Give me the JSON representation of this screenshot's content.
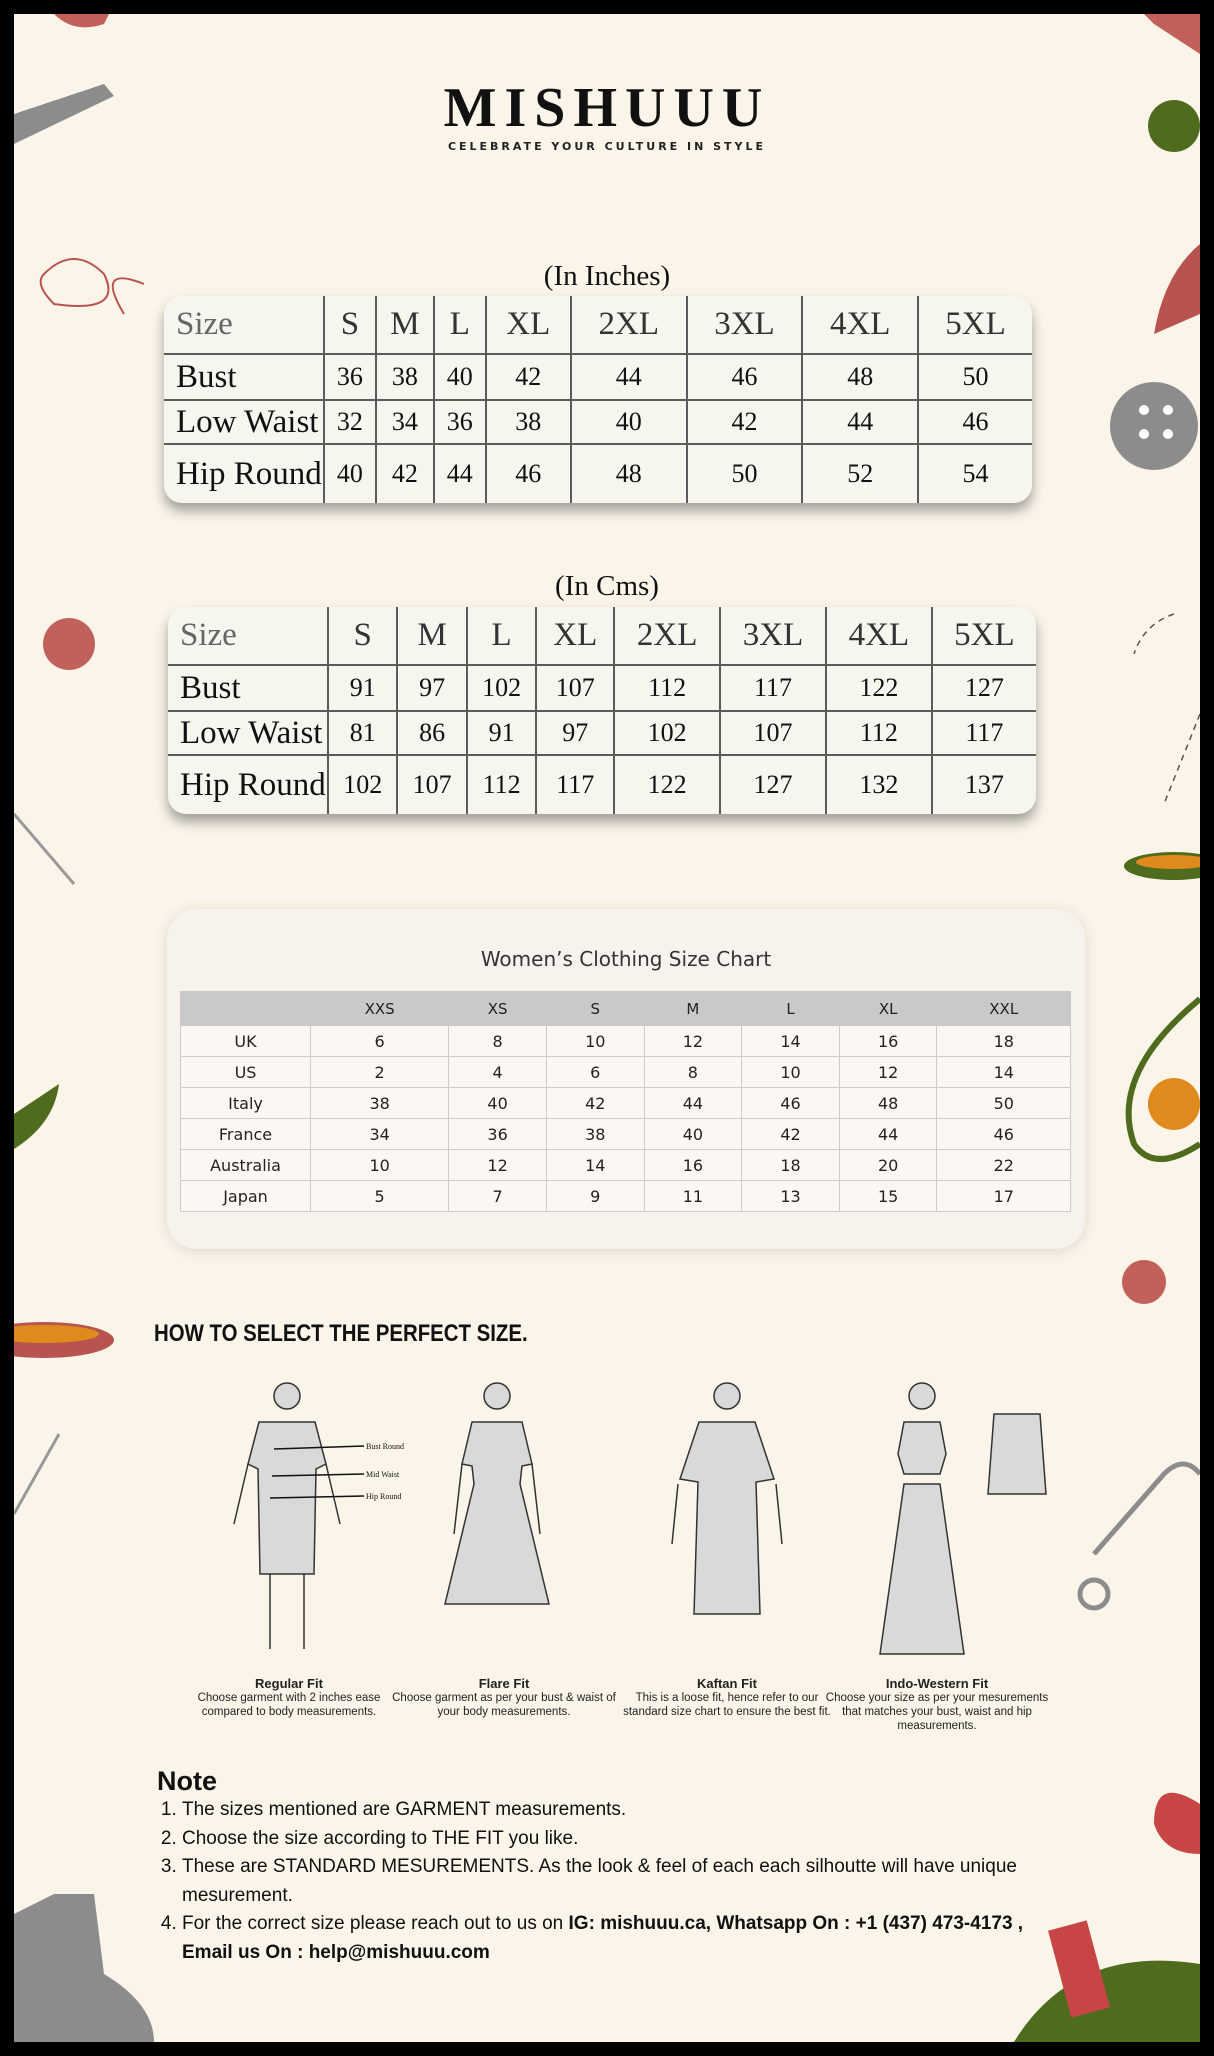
{
  "brand": {
    "name": "MISHUUU",
    "tagline": "CELEBRATE YOUR CULTURE IN STYLE"
  },
  "inches": {
    "title": "(In Inches)",
    "header": [
      "Size",
      "S",
      "M",
      "L",
      "XL",
      "2XL",
      "3XL",
      "4XL",
      "5XL"
    ],
    "rows": [
      [
        "Bust",
        36,
        38,
        40,
        42,
        44,
        46,
        48,
        50
      ],
      [
        "Low Waist",
        32,
        34,
        36,
        38,
        40,
        42,
        44,
        46
      ],
      [
        "Hip Round",
        40,
        42,
        44,
        46,
        48,
        50,
        52,
        54
      ]
    ]
  },
  "cms": {
    "title": "(In Cms)",
    "header": [
      "Size",
      "S",
      "M",
      "L",
      "XL",
      "2XL",
      "3XL",
      "4XL",
      "5XL"
    ],
    "rows": [
      [
        "Bust",
        91,
        97,
        102,
        107,
        112,
        117,
        122,
        127
      ],
      [
        "Low Waist",
        81,
        86,
        91,
        97,
        102,
        107,
        112,
        117
      ],
      [
        "Hip Round",
        102,
        107,
        112,
        117,
        122,
        127,
        132,
        137
      ]
    ]
  },
  "womens": {
    "title": "Women’s Clothing Size Chart",
    "columns": [
      "XXS",
      "XS",
      "S",
      "M",
      "L",
      "XL",
      "XXL"
    ],
    "rows": [
      {
        "label": "UK",
        "values": [
          6,
          8,
          10,
          12,
          14,
          16,
          18
        ]
      },
      {
        "label": "US",
        "values": [
          2,
          4,
          6,
          8,
          10,
          12,
          14
        ]
      },
      {
        "label": "Italy",
        "values": [
          38,
          40,
          42,
          44,
          46,
          48,
          50
        ]
      },
      {
        "label": "France",
        "values": [
          34,
          36,
          38,
          40,
          42,
          44,
          46
        ]
      },
      {
        "label": "Australia",
        "values": [
          10,
          12,
          14,
          16,
          18,
          20,
          22
        ]
      },
      {
        "label": "Japan",
        "values": [
          5,
          7,
          9,
          11,
          13,
          15,
          17
        ]
      }
    ]
  },
  "howto": {
    "title": "HOW TO SELECT THE PERFECT SIZE.",
    "measure_labels": [
      "Bust Round",
      "Mid Waist",
      "Hip Round"
    ],
    "fits": [
      {
        "name": "Regular Fit",
        "description": "Choose garment with 2 inches ease compared to body measurements."
      },
      {
        "name": "Flare Fit",
        "description": "Choose garment as per your bust & waist of your body measurements."
      },
      {
        "name": "Kaftan Fit",
        "description": "This is a loose fit, hence refer to our standard size chart to ensure the best fit."
      },
      {
        "name": "Indo-Western Fit",
        "description": "Choose your size as per your mesurements that matches your bust, waist and hip measurements."
      }
    ]
  },
  "note": {
    "title": "Note",
    "items": [
      "The sizes mentioned are GARMENT measurements.",
      "Choose the size according to THE FIT you like.",
      "These are STANDARD MESUREMENTS. As the look & feel of each each silhoutte will have unique mesurement.",
      {
        "text": "For the correct size please reach out to us on ",
        "bold": "IG: mishuuu.ca, Whatsapp On : +1 (437) 473-4173 , Email us On : help@mishuuu.com"
      }
    ]
  }
}
